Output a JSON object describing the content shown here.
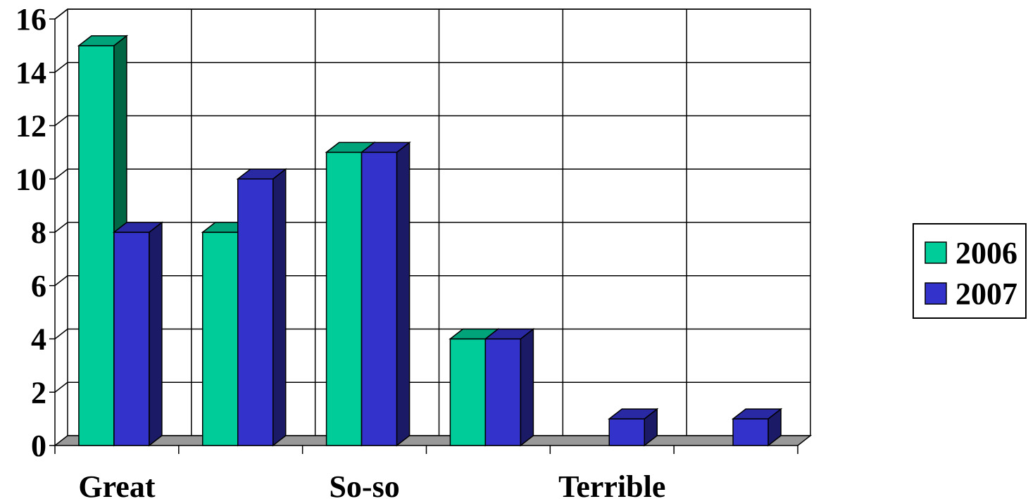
{
  "chart_data": {
    "type": "bar",
    "categories": [
      "Great",
      "",
      "So-so",
      "",
      "Terrible",
      ""
    ],
    "series": [
      {
        "name": "2006",
        "values": [
          15,
          8,
          11,
          4,
          0,
          0
        ],
        "color": "#00cc99",
        "side_color": "#006644",
        "top_color": "#00a37a"
      },
      {
        "name": "2007",
        "values": [
          8,
          10,
          11,
          4,
          1,
          1
        ],
        "color": "#3333cc",
        "side_color": "#1a1a66",
        "top_color": "#2929a3"
      }
    ],
    "ylim": [
      0,
      16
    ],
    "yticks": [
      "0",
      "2",
      "4",
      "6",
      "8",
      "10",
      "12",
      "14",
      "16"
    ],
    "grid": true,
    "legend_position": "right",
    "floor_color": "#999999"
  }
}
